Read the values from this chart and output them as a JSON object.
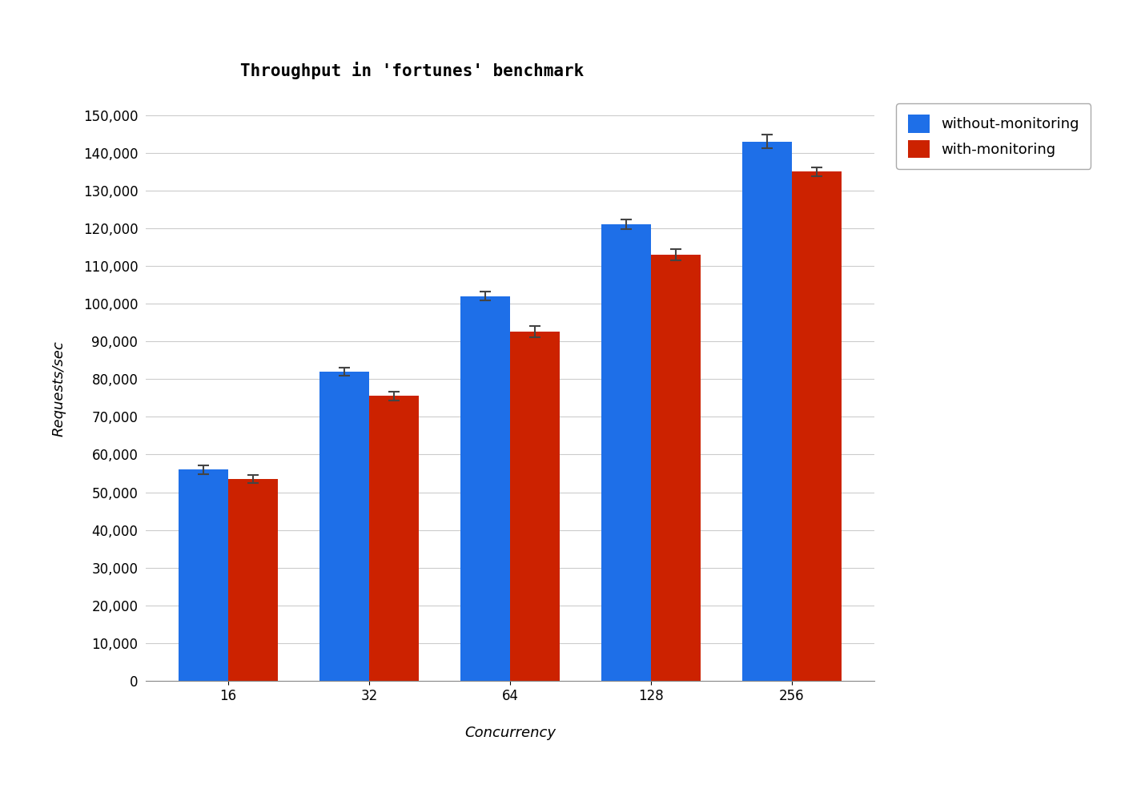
{
  "title": "Throughput in 'fortunes' benchmark",
  "xlabel": "Concurrency",
  "ylabel": "Requests/sec",
  "categories": [
    16,
    32,
    64,
    128,
    256
  ],
  "without_monitoring": [
    56000,
    82000,
    102000,
    121000,
    143000
  ],
  "without_monitoring_err": [
    1200,
    1000,
    1200,
    1200,
    1800
  ],
  "with_monitoring": [
    53500,
    75500,
    92500,
    113000,
    135000
  ],
  "with_monitoring_err": [
    1000,
    1200,
    1500,
    1500,
    1200
  ],
  "bar_color_blue": "#1e6fe8",
  "bar_color_red": "#cc2200",
  "legend_labels": [
    "without-monitoring",
    "with-monitoring"
  ],
  "background_color": "#ffffff",
  "ylim": [
    0,
    155000
  ],
  "ytick_step": 10000,
  "bar_width": 0.35,
  "title_fontsize": 15,
  "label_fontsize": 13,
  "tick_fontsize": 12,
  "legend_fontsize": 13
}
